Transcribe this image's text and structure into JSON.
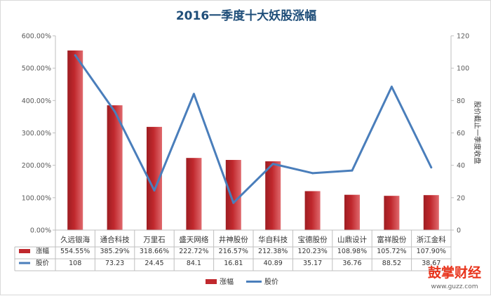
{
  "chart_data": {
    "type": "bar",
    "title": "2016一季度十大妖股涨幅",
    "categories": [
      "久远银海",
      "通合科技",
      "万里石",
      "盛天网络",
      "井神股份",
      "华自科技",
      "宝德股份",
      "山鼎设计",
      "富祥股份",
      "浙江金科"
    ],
    "series": [
      {
        "name": "涨幅",
        "kind": "bar",
        "axis": "left",
        "color": "#c0282d",
        "values": [
          554.55,
          385.29,
          318.66,
          222.72,
          216.57,
          212.38,
          120.23,
          108.98,
          105.72,
          107.9
        ],
        "labels": [
          "554.55%",
          "385.29%",
          "318.66%",
          "222.72%",
          "216.57%",
          "212.38%",
          "120.23%",
          "108.98%",
          "105.72%",
          "107.90%"
        ]
      },
      {
        "name": "股价",
        "kind": "line",
        "axis": "right",
        "color": "#4a7ebb",
        "values": [
          108,
          73.23,
          24.45,
          84.1,
          16.81,
          40.89,
          35.17,
          36.76,
          88.52,
          38.67
        ],
        "labels": [
          "108",
          "73.23",
          "24.45",
          "84.1",
          "16.81",
          "40.89",
          "35.17",
          "36.76",
          "88.52",
          "38.67"
        ]
      }
    ],
    "yleft": {
      "min": 0,
      "max": 600,
      "step": 100,
      "tick_labels": [
        "0.00%",
        "100.00%",
        "200.00%",
        "300.00%",
        "400.00%",
        "500.00%",
        "600.00%"
      ]
    },
    "yright": {
      "min": 0,
      "max": 120,
      "step": 20,
      "tick_labels": [
        "0",
        "20",
        "40",
        "60",
        "80",
        "100",
        "120"
      ],
      "label": "股价截止一季度收盘"
    },
    "gridlines": false,
    "data_table": true,
    "legend": {
      "position": "bottom",
      "entries": [
        "涨幅",
        "股价"
      ]
    }
  },
  "watermark": {
    "brand": "鼓掌财经",
    "url": "www.guzz.com"
  }
}
